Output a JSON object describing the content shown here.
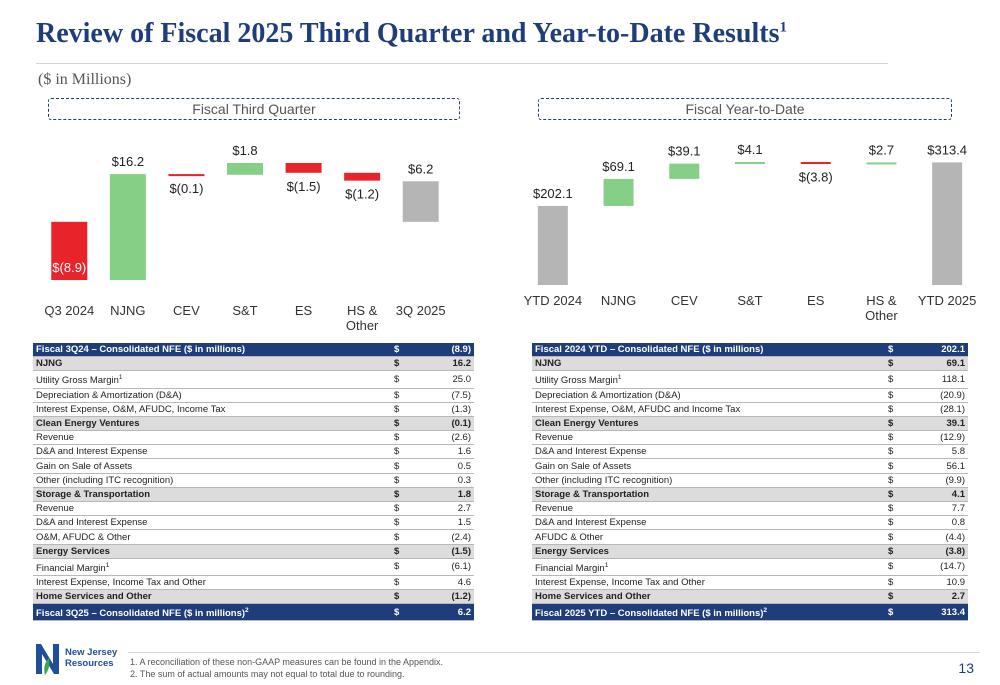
{
  "title": "Review of Fiscal 2025 Third Quarter and Year-to-Date Results",
  "title_footnote": "1",
  "units": "($ in Millions)",
  "colors": {
    "increase": "#86cf86",
    "decrease": "#e8232a",
    "total": "#b5b5b5",
    "brand": "#1f3d7a"
  },
  "chart_data": [
    {
      "type": "bar",
      "subtype": "waterfall",
      "title": "Fiscal Third Quarter",
      "categories": [
        "Q3 2024",
        "NJNG",
        "CEV",
        "S&T",
        "ES",
        "HS & Other",
        "3Q 2025"
      ],
      "category_lines": [
        [
          "Q3 2024"
        ],
        [
          "NJNG"
        ],
        [
          "CEV"
        ],
        [
          "S&T"
        ],
        [
          "ES"
        ],
        [
          "HS &",
          "Other"
        ],
        [
          "3Q 2025"
        ]
      ],
      "values": [
        -8.9,
        16.2,
        -0.1,
        1.8,
        -1.5,
        -1.2,
        6.2
      ],
      "kinds": [
        "total-negative",
        "increase",
        "decrease",
        "increase",
        "decrease",
        "decrease",
        "total"
      ],
      "labels": [
        "$(8.9)",
        "$16.2",
        "$(0.1)",
        "$1.8",
        "$(1.5)",
        "$(1.2)",
        "$6.2"
      ]
    },
    {
      "type": "bar",
      "subtype": "waterfall",
      "title": "Fiscal Year-to-Date",
      "categories": [
        "YTD 2024",
        "NJNG",
        "CEV",
        "S&T",
        "ES",
        "HS & Other",
        "YTD 2025"
      ],
      "category_lines": [
        [
          "YTD 2024"
        ],
        [
          "NJNG"
        ],
        [
          "CEV"
        ],
        [
          "S&T"
        ],
        [
          "ES"
        ],
        [
          "HS &",
          "Other"
        ],
        [
          "YTD 2025"
        ]
      ],
      "values": [
        202.1,
        69.1,
        39.1,
        4.1,
        -3.8,
        2.7,
        313.4
      ],
      "kinds": [
        "total",
        "increase",
        "increase",
        "increase",
        "decrease",
        "increase",
        "total"
      ],
      "labels": [
        "$202.1",
        "$69.1",
        "$39.1",
        "$4.1",
        "$(3.8)",
        "$2.7",
        "$313.4"
      ]
    }
  ],
  "tables": {
    "quarter": [
      {
        "label": "Fiscal 3Q24 – Consolidated NFE ($ in millions)",
        "sup": "",
        "dollar": "$",
        "value": "(8.9)",
        "style": "hdr"
      },
      {
        "label": "NJNG",
        "sup": "",
        "dollar": "$",
        "value": "16.2",
        "style": "bold"
      },
      {
        "label": "Utility Gross Margin",
        "sup": "1",
        "dollar": "$",
        "value": "25.0",
        "style": ""
      },
      {
        "label": "Depreciation & Amortization (D&A)",
        "sup": "",
        "dollar": "$",
        "value": "(7.5)",
        "style": ""
      },
      {
        "label": "Interest Expense, O&M, AFUDC, Income Tax",
        "sup": "",
        "dollar": "$",
        "value": "(1.3)",
        "style": ""
      },
      {
        "label": "Clean Energy Ventures",
        "sup": "",
        "dollar": "$",
        "value": "(0.1)",
        "style": "bold"
      },
      {
        "label": "Revenue",
        "sup": "",
        "dollar": "$",
        "value": "(2.6)",
        "style": ""
      },
      {
        "label": "D&A and Interest Expense",
        "sup": "",
        "dollar": "$",
        "value": "1.6",
        "style": ""
      },
      {
        "label": "Gain on Sale of Assets",
        "sup": "",
        "dollar": "$",
        "value": "0.5",
        "style": ""
      },
      {
        "label": "Other (including ITC recognition)",
        "sup": "",
        "dollar": "$",
        "value": "0.3",
        "style": ""
      },
      {
        "label": "Storage & Transportation",
        "sup": "",
        "dollar": "$",
        "value": "1.8",
        "style": "bold"
      },
      {
        "label": "Revenue",
        "sup": "",
        "dollar": "$",
        "value": "2.7",
        "style": ""
      },
      {
        "label": "D&A and Interest Expense",
        "sup": "",
        "dollar": "$",
        "value": "1.5",
        "style": ""
      },
      {
        "label": "O&M, AFUDC & Other",
        "sup": "",
        "dollar": "$",
        "value": "(2.4)",
        "style": ""
      },
      {
        "label": "Energy Services",
        "sup": "",
        "dollar": "$",
        "value": "(1.5)",
        "style": "bold"
      },
      {
        "label": "Financial Margin",
        "sup": "1",
        "dollar": "$",
        "value": "(6.1)",
        "style": ""
      },
      {
        "label": "Interest Expense, Income Tax and Other",
        "sup": "",
        "dollar": "$",
        "value": "4.6",
        "style": ""
      },
      {
        "label": "Home Services and Other",
        "sup": "",
        "dollar": "$",
        "value": "(1.2)",
        "style": "bold"
      },
      {
        "label": "Fiscal 3Q25 – Consolidated NFE ($ in millions)",
        "sup": "2",
        "dollar": "$",
        "value": "6.2",
        "style": "hdr"
      }
    ],
    "ytd": [
      {
        "label": "Fiscal 2024 YTD – Consolidated NFE ($ in millions)",
        "sup": "",
        "dollar": "$",
        "value": "202.1",
        "style": "hdr"
      },
      {
        "label": "NJNG",
        "sup": "",
        "dollar": "$",
        "value": "69.1",
        "style": "bold"
      },
      {
        "label": "Utility Gross Margin",
        "sup": "1",
        "dollar": "$",
        "value": "118.1",
        "style": ""
      },
      {
        "label": "Depreciation & Amortization (D&A)",
        "sup": "",
        "dollar": "$",
        "value": "(20.9)",
        "style": ""
      },
      {
        "label": "Interest Expense, O&M, AFUDC and Income Tax",
        "sup": "",
        "dollar": "$",
        "value": "(28.1)",
        "style": ""
      },
      {
        "label": "Clean Energy Ventures",
        "sup": "",
        "dollar": "$",
        "value": "39.1",
        "style": "bold"
      },
      {
        "label": "Revenue",
        "sup": "",
        "dollar": "$",
        "value": "(12.9)",
        "style": ""
      },
      {
        "label": "D&A and Interest Expense",
        "sup": "",
        "dollar": "$",
        "value": "5.8",
        "style": ""
      },
      {
        "label": "Gain on Sale of Assets",
        "sup": "",
        "dollar": "$",
        "value": "56.1",
        "style": ""
      },
      {
        "label": "Other (including ITC recognition)",
        "sup": "",
        "dollar": "$",
        "value": "(9.9)",
        "style": ""
      },
      {
        "label": "Storage & Transportation",
        "sup": "",
        "dollar": "$",
        "value": "4.1",
        "style": "bold"
      },
      {
        "label": "Revenue",
        "sup": "",
        "dollar": "$",
        "value": "7.7",
        "style": ""
      },
      {
        "label": "D&A and Interest Expense",
        "sup": "",
        "dollar": "$",
        "value": "0.8",
        "style": ""
      },
      {
        "label": "AFUDC & Other",
        "sup": "",
        "dollar": "$",
        "value": "(4.4)",
        "style": ""
      },
      {
        "label": "Energy Services",
        "sup": "",
        "dollar": "$",
        "value": "(3.8)",
        "style": "bold"
      },
      {
        "label": "Financial Margin",
        "sup": "1",
        "dollar": "$",
        "value": "(14.7)",
        "style": ""
      },
      {
        "label": "Interest Expense, Income Tax and Other",
        "sup": "",
        "dollar": "$",
        "value": "10.9",
        "style": ""
      },
      {
        "label": "Home Services and Other",
        "sup": "",
        "dollar": "$",
        "value": "2.7",
        "style": "bold"
      },
      {
        "label": "Fiscal 2025 YTD – Consolidated NFE ($ in millions)",
        "sup": "2",
        "dollar": "$",
        "value": "313.4",
        "style": "hdr"
      }
    ]
  },
  "logo": {
    "line1": "New Jersey",
    "line2": "Resources"
  },
  "footnotes": [
    "1.    A reconciliation of these non-GAAP measures can be found in the Appendix.",
    "2.    The sum of actual amounts may not equal to total due to rounding."
  ],
  "page_number": "13"
}
